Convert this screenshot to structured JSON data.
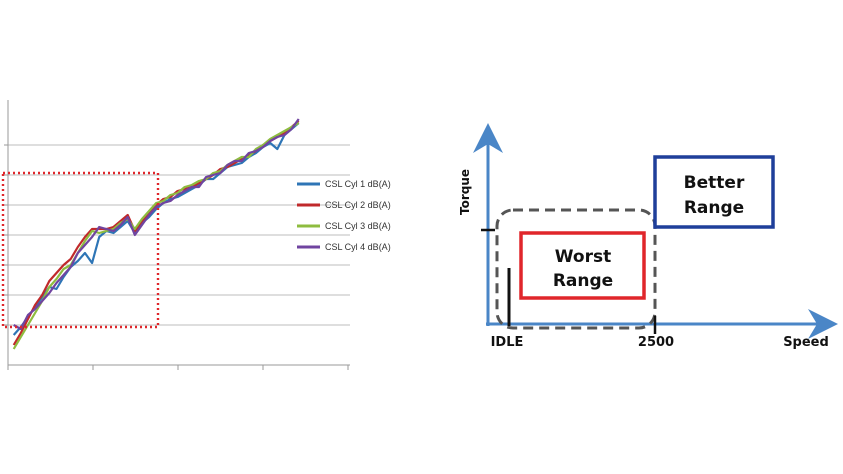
{
  "chart_data": [
    {
      "type": "line",
      "title": "",
      "xlabel": "",
      "ylabel": "",
      "grid": true,
      "legend_position": "right",
      "x": [
        0,
        1,
        2,
        3,
        4,
        5,
        6,
        7,
        8,
        9,
        10,
        11,
        12,
        13,
        14,
        15,
        16,
        17,
        18,
        19,
        20,
        21,
        22,
        23,
        24,
        25,
        26,
        27,
        28,
        29,
        30,
        31,
        32,
        33,
        34,
        35,
        36,
        37,
        38,
        39,
        40
      ],
      "series": [
        {
          "name": "CSL Cyl 1 dB(A)",
          "color": "#2e75b6",
          "values": [
            1.5,
            1.9,
            2.4,
            2.9,
            3.4,
            3.9,
            3.8,
            4.4,
            4.9,
            5.2,
            5.6,
            5.1,
            6.4,
            6.7,
            6.6,
            6.9,
            7.2,
            6.6,
            7.1,
            7.4,
            7.8,
            8.1,
            8.3,
            8.4,
            8.6,
            8.8,
            9.0,
            9.3,
            9.3,
            9.6,
            9.9,
            10.0,
            10.1,
            10.4,
            10.6,
            10.9,
            11.1,
            10.8,
            11.5,
            11.8,
            12.1
          ]
        },
        {
          "name": "CSL Cyl 2 dB(A)",
          "color": "#c0292b",
          "values": [
            1.0,
            1.6,
            2.3,
            3.0,
            3.5,
            4.2,
            4.6,
            5.0,
            5.3,
            5.9,
            6.4,
            6.8,
            6.8,
            6.8,
            6.9,
            7.2,
            7.5,
            6.7,
            7.2,
            7.6,
            8.0,
            8.3,
            8.4,
            8.7,
            8.8,
            8.9,
            9.1,
            9.3,
            9.5,
            9.8,
            9.9,
            10.1,
            10.3,
            10.5,
            10.7,
            11.0,
            11.2,
            11.4,
            11.6,
            11.9,
            12.2
          ]
        },
        {
          "name": "CSL Cyl 3 dB(A)",
          "color": "#8ebc3f",
          "values": [
            0.8,
            1.4,
            2.0,
            2.6,
            3.2,
            3.9,
            4.3,
            4.8,
            5.0,
            5.6,
            6.2,
            6.7,
            6.6,
            6.7,
            6.8,
            7.1,
            7.3,
            6.8,
            7.3,
            7.7,
            8.1,
            8.2,
            8.5,
            8.6,
            8.9,
            9.0,
            9.2,
            9.3,
            9.6,
            9.7,
            10.0,
            10.2,
            10.4,
            10.4,
            10.8,
            11.0,
            11.3,
            11.5,
            11.7,
            11.9,
            12.1
          ]
        },
        {
          "name": "CSL Cyl 4 dB(A)",
          "color": "#7044a0",
          "values": [
            2.0,
            1.8,
            2.5,
            2.8,
            3.2,
            3.6,
            4.1,
            4.5,
            4.9,
            5.6,
            6.0,
            6.4,
            6.9,
            6.8,
            6.7,
            7.0,
            7.4,
            6.5,
            7.0,
            7.5,
            7.9,
            8.1,
            8.2,
            8.5,
            8.7,
            8.9,
            8.9,
            9.4,
            9.5,
            9.6,
            10.0,
            10.2,
            10.2,
            10.6,
            10.7,
            10.9,
            11.2,
            11.4,
            11.5,
            11.8,
            12.3
          ]
        }
      ],
      "ylim": [
        0,
        14
      ],
      "xlim": [
        0,
        48
      ]
    }
  ],
  "diagram": {
    "y_axis_label": "Torque",
    "x_axis_label": "Speed",
    "x_tick_idle": "IDLE",
    "x_tick_2500": "2500",
    "worst_box": {
      "line1": "Worst",
      "line2": "Range",
      "color": "#e0262b"
    },
    "better_box": {
      "line1": "Better",
      "line2": "Range",
      "color": "#1f3f9a"
    },
    "axis_color": "#4a86c7",
    "dashed_region_color": "#555555"
  },
  "highlight": {
    "color": "#e0262b"
  }
}
